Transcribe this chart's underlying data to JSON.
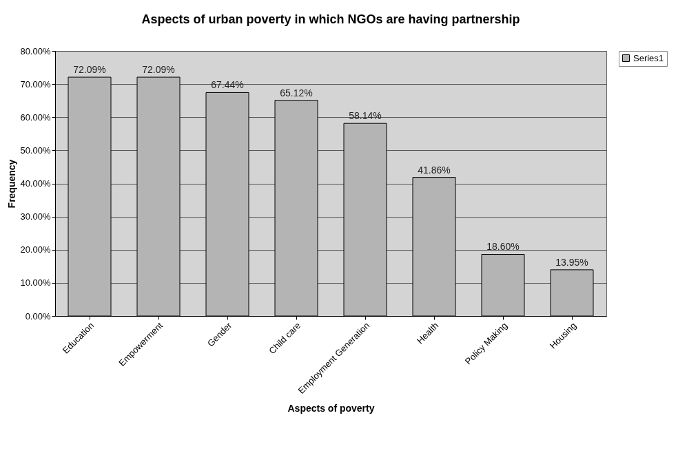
{
  "chart_data": {
    "type": "bar",
    "title": "Aspects of urban poverty in which NGOs are having partnership",
    "xlabel": "Aspects of poverty",
    "ylabel": "Frequency",
    "categories": [
      "Education",
      "Empowerment",
      "Gender",
      "Child care",
      "Employment Generation",
      "Health",
      "Policy Making",
      "Housing"
    ],
    "series": [
      {
        "name": "Series1",
        "color": "#b4b4b4",
        "values": [
          72.09,
          72.09,
          67.44,
          65.12,
          58.14,
          41.86,
          18.6,
          13.95
        ],
        "value_labels": [
          "72.09%",
          "72.09%",
          "67.44%",
          "65.12%",
          "58.14%",
          "41.86%",
          "18.60%",
          "13.95%"
        ]
      }
    ],
    "ylim": [
      0,
      80
    ],
    "yticks": [
      {
        "value": 0,
        "label": "0.00%"
      },
      {
        "value": 10,
        "label": "10.00%"
      },
      {
        "value": 20,
        "label": "20.00%"
      },
      {
        "value": 30,
        "label": "30.00%"
      },
      {
        "value": 40,
        "label": "40.00%"
      },
      {
        "value": 50,
        "label": "50.00%"
      },
      {
        "value": 60,
        "label": "60.00%"
      },
      {
        "value": 70,
        "label": "70.00%"
      },
      {
        "value": 80,
        "label": "80.00%"
      }
    ],
    "grid": "y",
    "legend": "right"
  }
}
